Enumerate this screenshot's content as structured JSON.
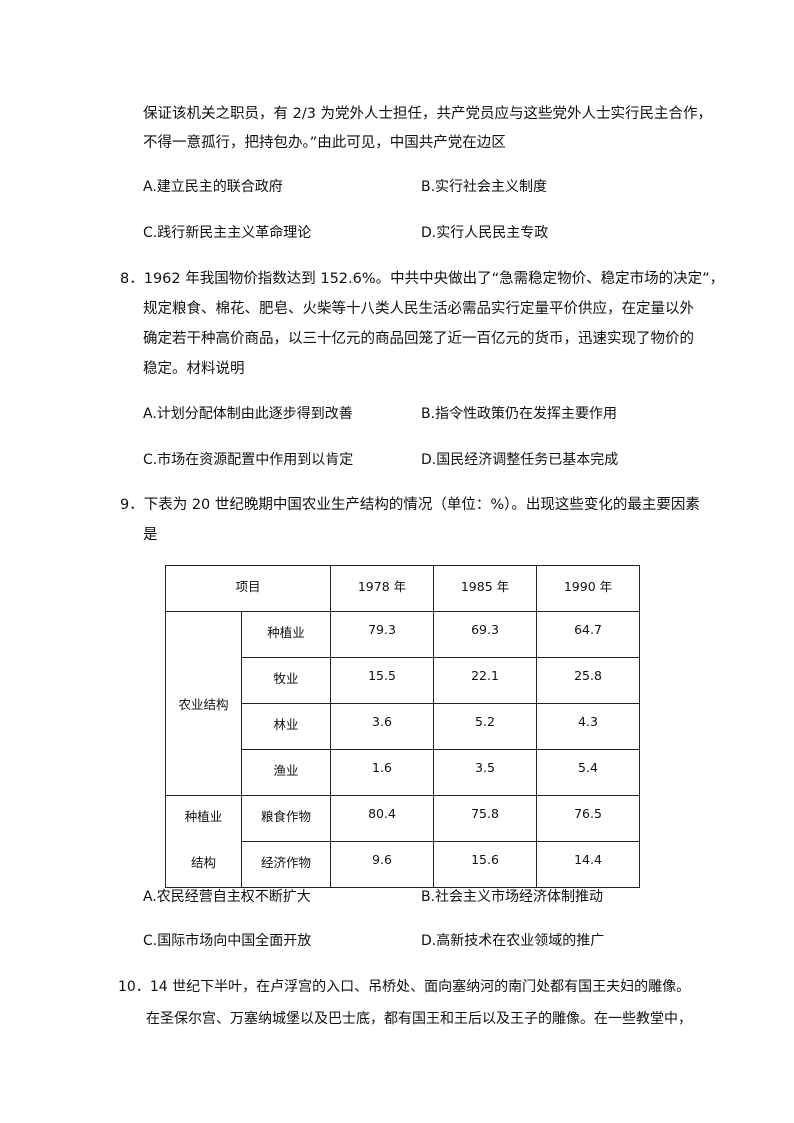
{
  "q7": {
    "lines": [
      "保证该机关之职员，有 2/3 为党外人士担任，共产党员应与这些党外人士实行民主合作，",
      "不得一意孤行，把持包办。”由此可见，中国共产党在边区"
    ],
    "options": [
      "A.建立民主的联合政府",
      "B.实行社会主义制度",
      "C.践行新民主主义革命理论",
      "D.实行人民民主专政"
    ]
  },
  "q8": {
    "lines": [
      "8．1962 年我国物价指数达到 152.6%。中共中央做出了“急需稳定物价、稳定市场的决定”，",
      "规定粮食、棉花、肥皂、火柴等十八类人民生活必需品实行定量平价供应，在定量以外",
      "确定若干种高价商品，以三十亿元的商品回笼了近一百亿元的货币，迅速实现了物价的",
      "稳定。材料说明"
    ],
    "options": [
      "A.计划分配体制由此逐步得到改善",
      "B.指令性政策仍在发挥主要作用",
      "C.市场在资源配置中作用到以肯定",
      "D.国民经济调整任务已基本完成"
    ]
  },
  "q9": {
    "lines": [
      "9．下表为 20 世纪晚期中国农业生产结构的情况（单位：%）。出现这些变化的最主要因素",
      "是"
    ],
    "table": {
      "header": [
        "项目",
        "1978 年",
        "1985 年",
        "1990 年"
      ],
      "group1": "农业结构",
      "group2_line1": "种植业",
      "group2_line2": "结构",
      "rows": [
        [
          "种植业",
          "79.3",
          "69.3",
          "64.7"
        ],
        [
          "牧业",
          "15.5",
          "22.1",
          "25.8"
        ],
        [
          "林业",
          "3.6",
          "5.2",
          "4.3"
        ],
        [
          "渔业",
          "1.6",
          "3.5",
          "5.4"
        ],
        [
          "粮食作物",
          "80.4",
          "75.8",
          "76.5"
        ],
        [
          "经济作物",
          "9.6",
          "15.6",
          "14.4"
        ]
      ]
    },
    "options": [
      "A.农民经营自主权不断扩大",
      "B.社会主义市场经济体制推动",
      "C.国际市场向中国全面开放",
      "D.高新技术在农业领域的推广"
    ]
  },
  "q10": {
    "lines": [
      "10．14 世纪下半叶，在卢浮宫的入口、吊桥处、面向塞纳河的南门处都有国王夫妇的雕像。",
      "在圣保尔宫、万塞纳城堡以及巴士底，都有国王和王后以及王子的雕像。在一些教堂中，"
    ]
  }
}
